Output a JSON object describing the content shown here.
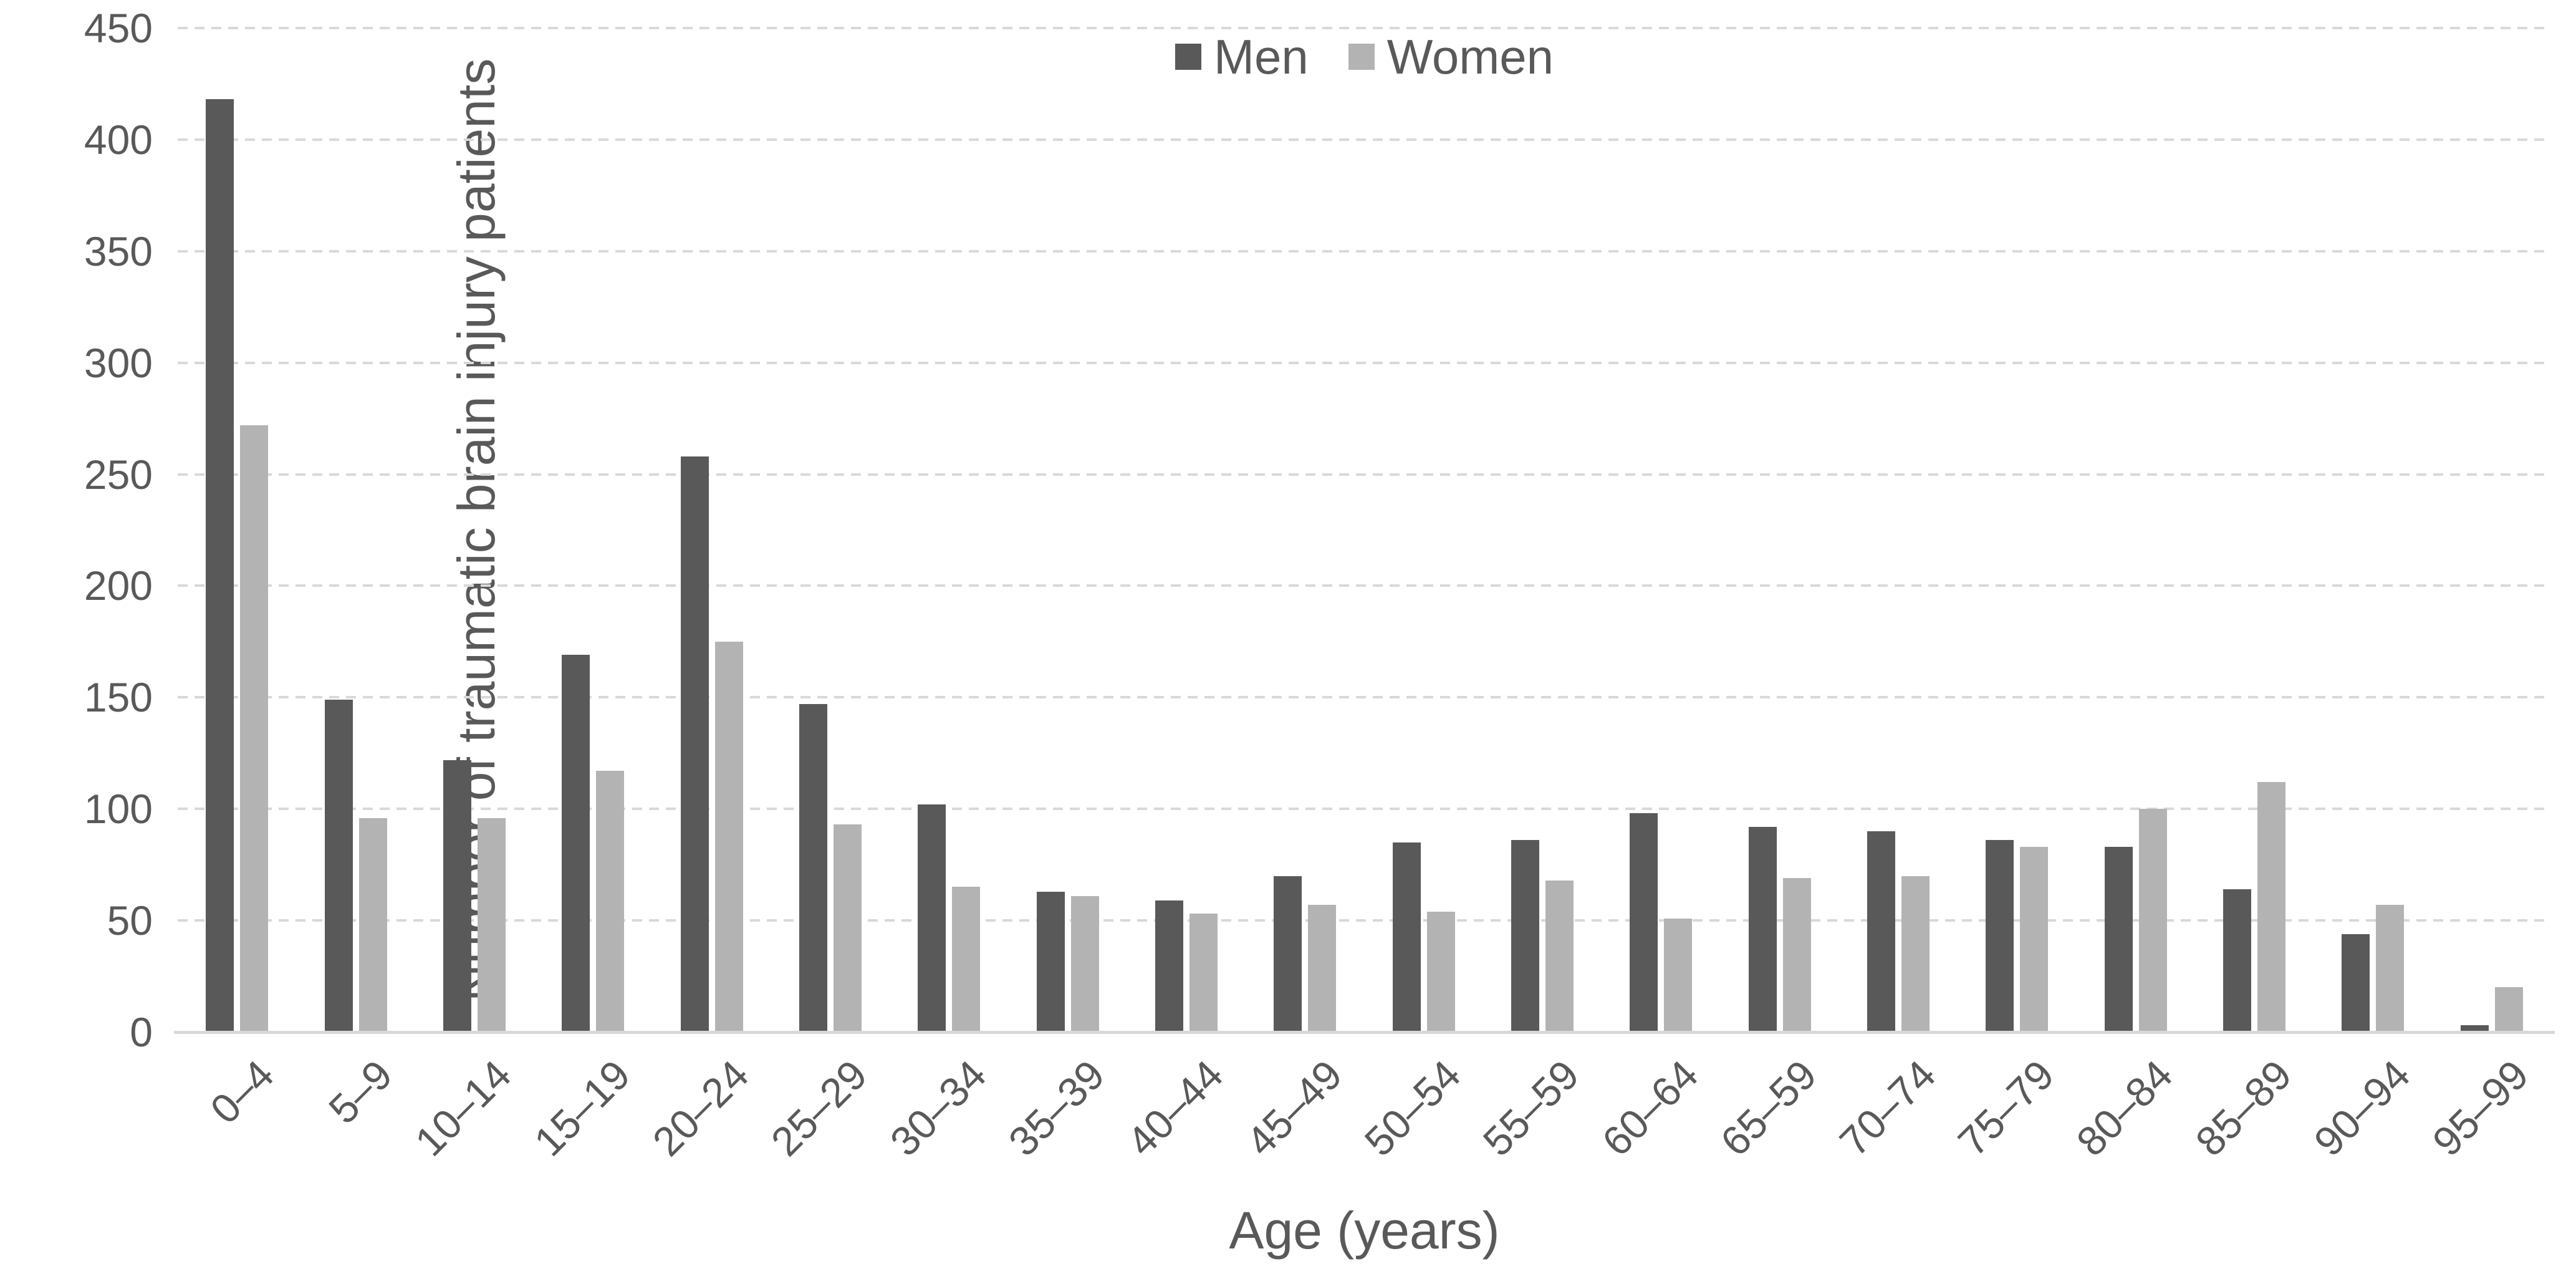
{
  "chart_data": {
    "type": "bar",
    "title": "",
    "categories": [
      "0–4",
      "5–9",
      "10–14",
      "15–19",
      "20–24",
      "25–29",
      "30–34",
      "35–39",
      "40–44",
      "45–49",
      "50–54",
      "55–59",
      "60–64",
      "65–59",
      "70–74",
      "75–79",
      "80–84",
      "85–89",
      "90–94",
      "95–99"
    ],
    "series": [
      {
        "name": "Men",
        "color": "#595959",
        "values": [
          418,
          149,
          122,
          169,
          258,
          147,
          102,
          63,
          59,
          70,
          85,
          86,
          98,
          92,
          90,
          86,
          83,
          64,
          44,
          3
        ]
      },
      {
        "name": "Women",
        "color": "#b3b3b3",
        "values": [
          272,
          96,
          96,
          117,
          175,
          93,
          65,
          61,
          53,
          57,
          54,
          68,
          51,
          69,
          70,
          83,
          100,
          112,
          57,
          20
        ]
      }
    ],
    "xlabel": "Age (years)",
    "ylabel": "Number of traumatic brain injury patients",
    "ylim": [
      0,
      450
    ],
    "yticks": [
      0,
      50,
      100,
      150,
      200,
      250,
      300,
      350,
      400,
      450
    ],
    "grid": "horizontal-dashed",
    "legend_position": "top-center",
    "colors": {
      "gridline": "#d9d9d9",
      "axis_line": "#d9d9d9",
      "text": "#595959",
      "background": "#ffffff"
    }
  }
}
